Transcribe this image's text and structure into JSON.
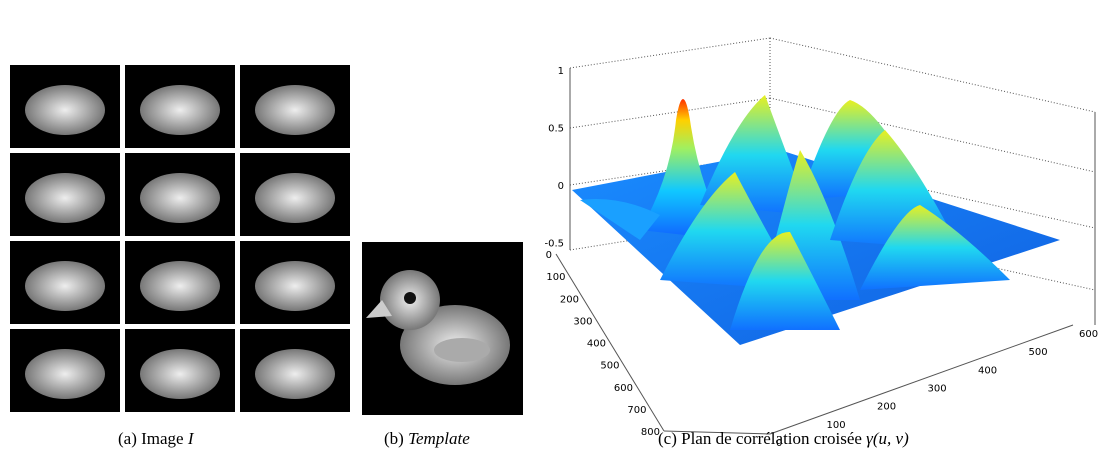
{
  "figure": {
    "panels": [
      {
        "label": "(a)",
        "caption": "Image",
        "math": "I"
      },
      {
        "label": "(b)",
        "caption": "Template"
      },
      {
        "label": "(c)",
        "caption": "Plan de corrélation croisée",
        "math": "γ(u, v)"
      }
    ],
    "plot": {
      "zticks": [
        1,
        0.5,
        0,
        -0.5
      ],
      "yticks": [
        0,
        100,
        200,
        300,
        400,
        500,
        600,
        700,
        800
      ],
      "xticks": [
        0,
        100,
        200,
        300,
        400,
        500,
        600
      ]
    }
  }
}
